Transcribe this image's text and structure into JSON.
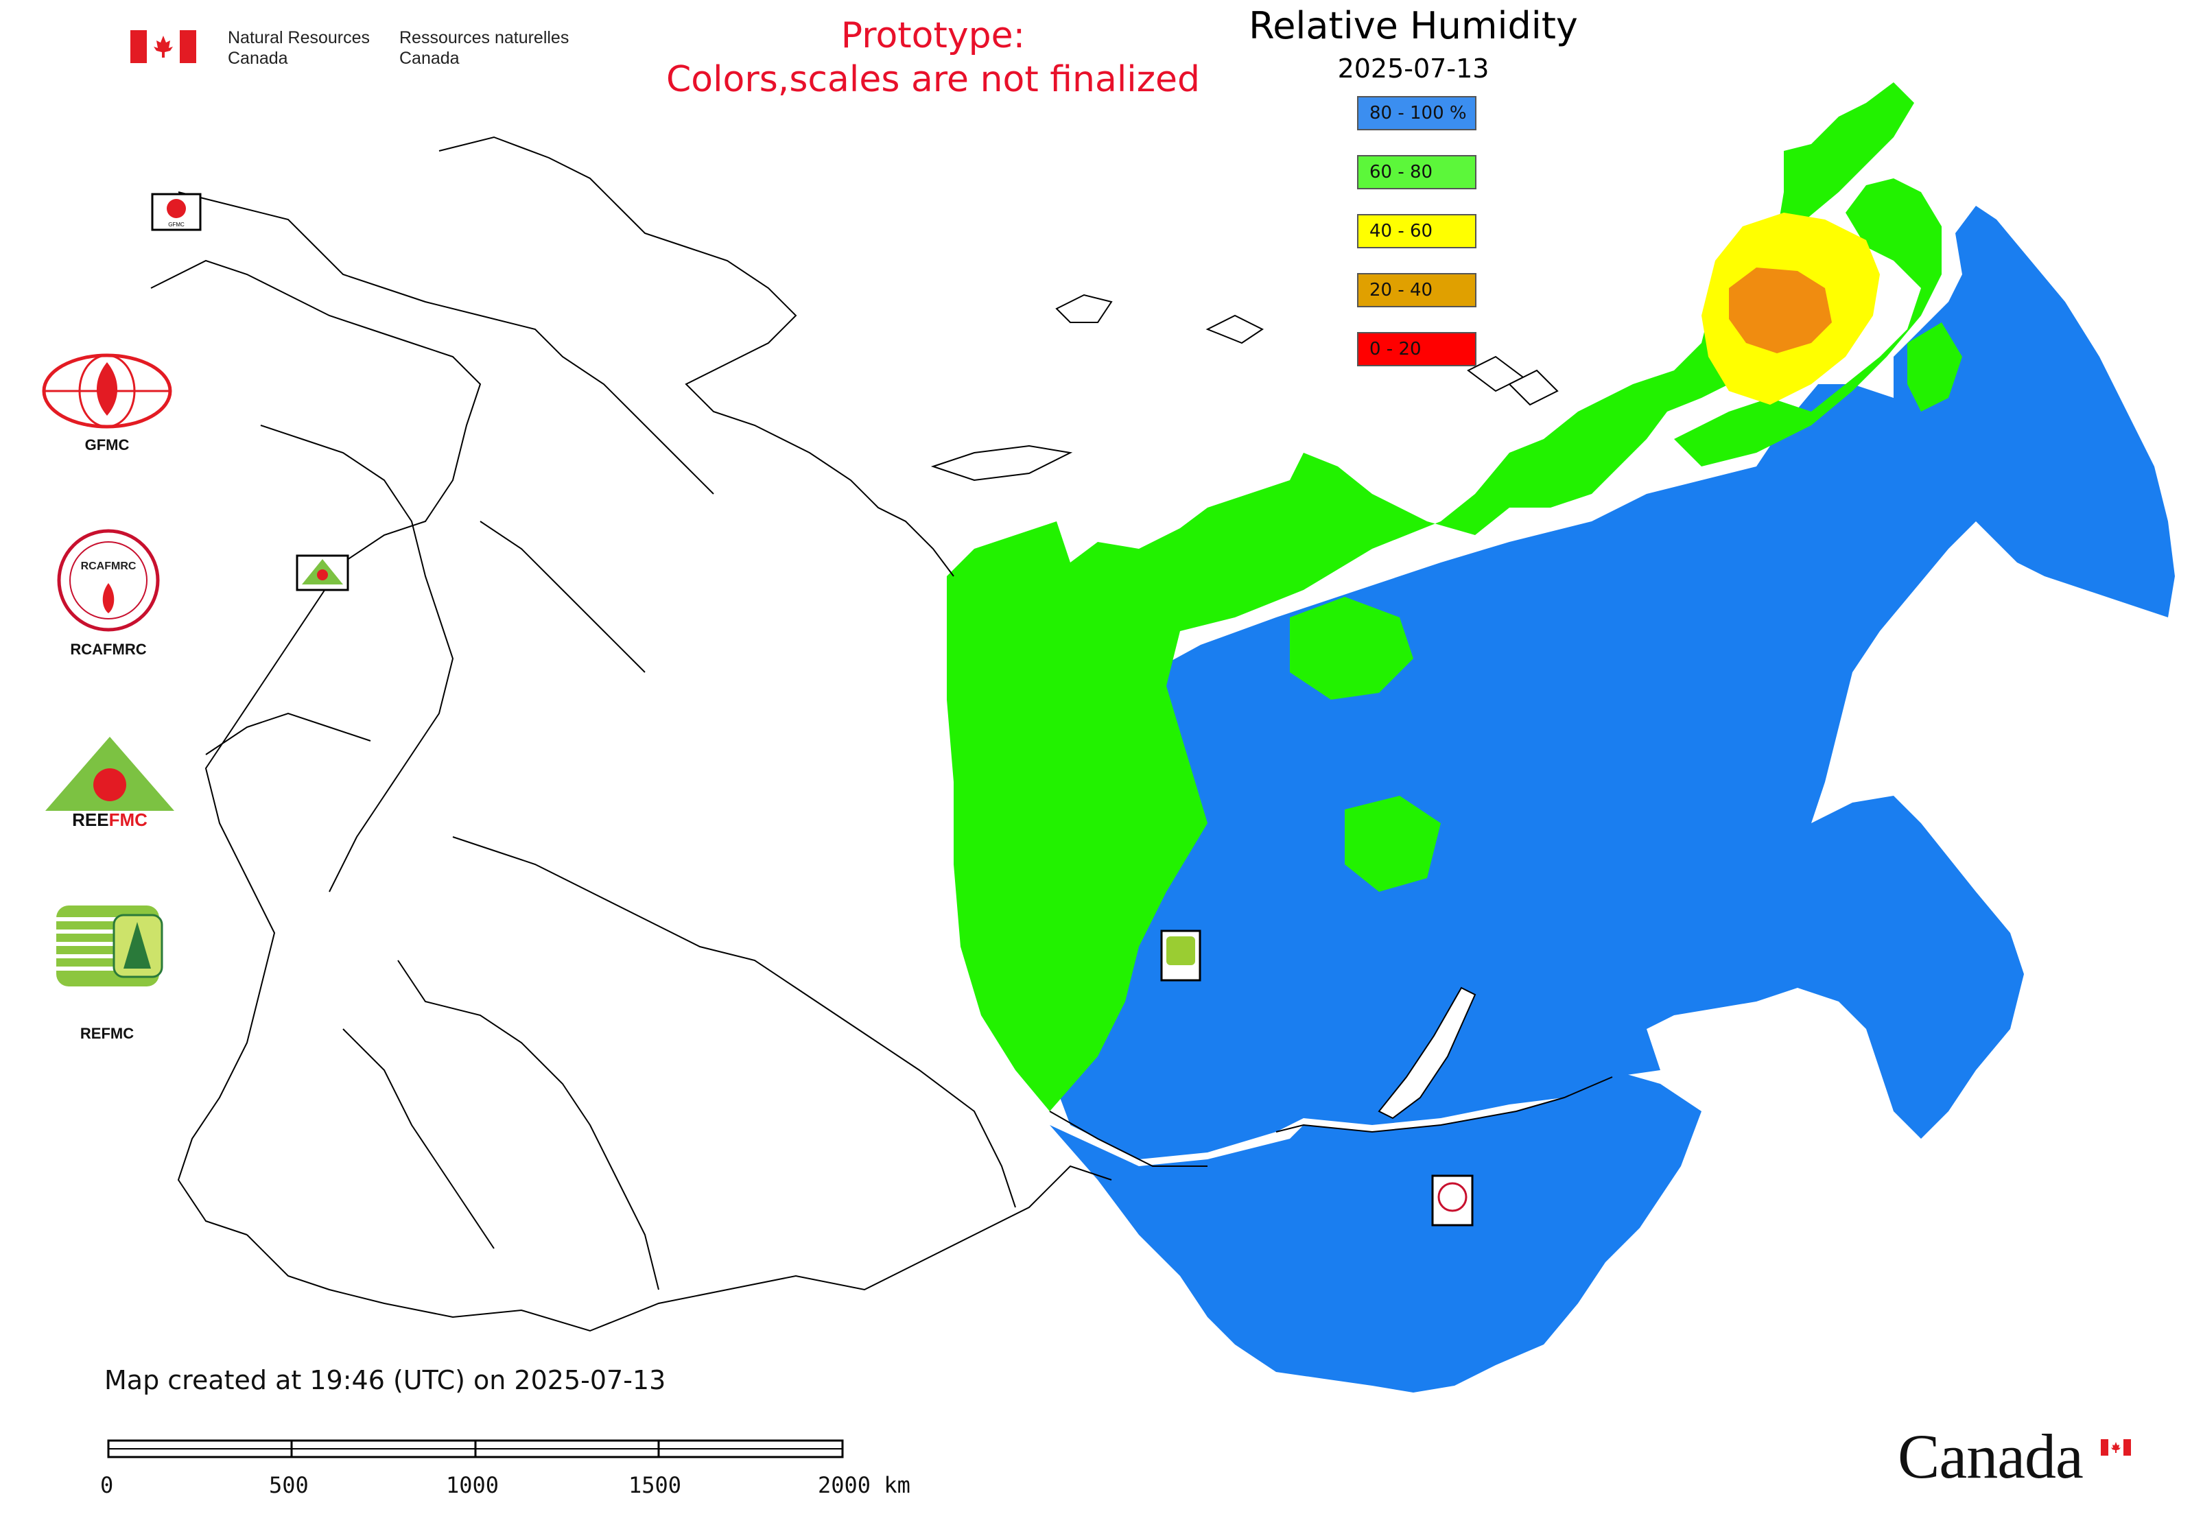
{
  "header": {
    "agency_en": [
      "Natural Resources",
      "Canada"
    ],
    "agency_fr": [
      "Ressources naturelles",
      "Canada"
    ],
    "prototype_line1": "Prototype:",
    "prototype_line2": "Colors,scales are not finalized"
  },
  "map": {
    "title": "Relative Humidity",
    "date": "2025-07-13",
    "legend": [
      {
        "label": "80 - 100 %",
        "color": "#3b8ef0"
      },
      {
        "label": "60 - 80",
        "color": "#5cf73a"
      },
      {
        "label": "40 - 60",
        "color": "#ffff00"
      },
      {
        "label": "20 - 40",
        "color": "#e0a000"
      },
      {
        "label": "0 - 20",
        "color": "#ff0000"
      }
    ],
    "colors": {
      "blue": "#1a7ef0",
      "green": "#22f200",
      "yellow": "#ffff00",
      "orange": "#f08c10",
      "outline": "#000000"
    },
    "markers": [
      "GFMC",
      "REEFMC",
      "REFMC",
      "RCAFMRC"
    ]
  },
  "side_logos": [
    {
      "name": "GFMC",
      "icon": "gfmc-logo"
    },
    {
      "name": "RCAFMRC",
      "icon": "rcafmrc-logo"
    },
    {
      "name": "REEFMC",
      "icon": "reefmc-logo"
    },
    {
      "name": "REFMC",
      "icon": "refmc-logo"
    }
  ],
  "footer": {
    "created": "Map created at 19:46 (UTC) on 2025-07-13",
    "scale_labels": [
      "0",
      "500",
      "1000",
      "1500",
      "2000 km"
    ],
    "wordmark": "Canada"
  }
}
